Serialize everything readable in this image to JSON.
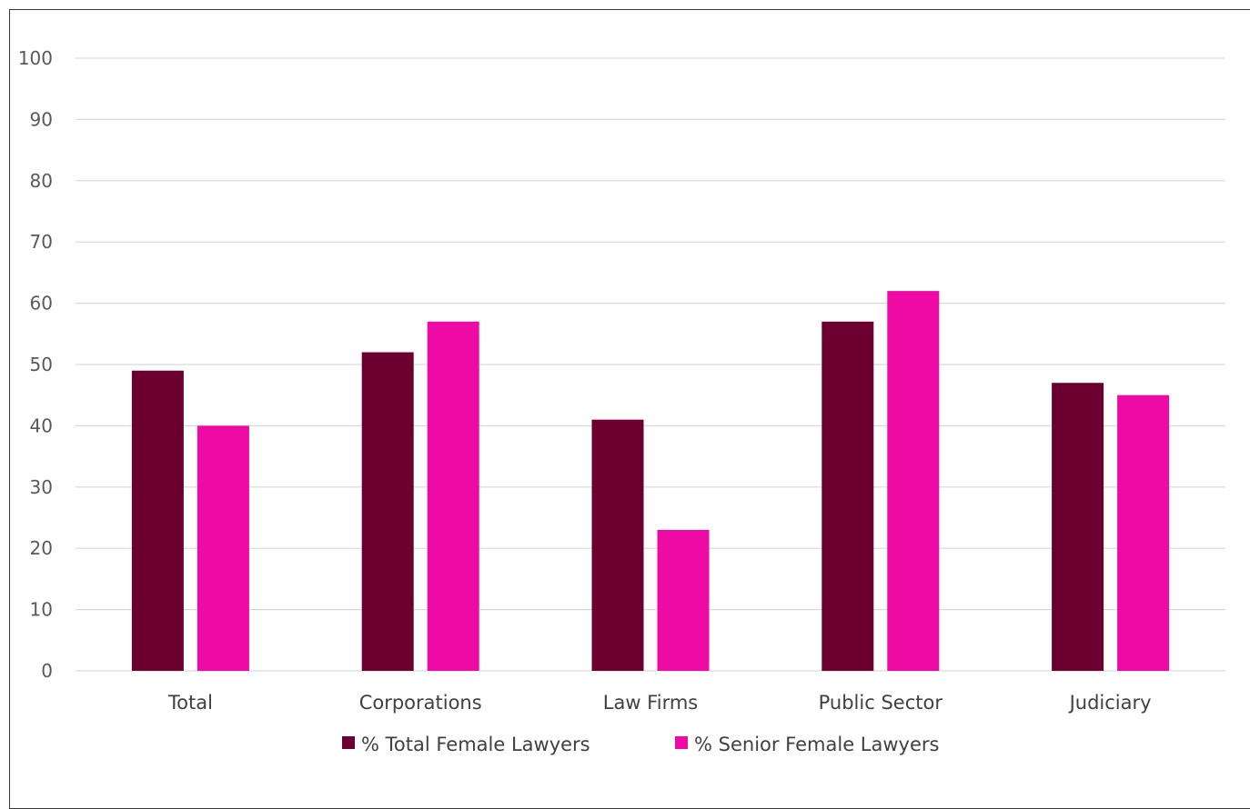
{
  "chart_data": {
    "type": "bar",
    "categories": [
      "Total",
      "Corporations",
      "Law Firms",
      "Public Sector",
      "Judiciary"
    ],
    "series": [
      {
        "name": "% Total Female Lawyers",
        "values": [
          49,
          52,
          41,
          57,
          47
        ],
        "color": "#6b0030"
      },
      {
        "name": "% Senior Female Lawyers",
        "values": [
          40,
          57,
          23,
          62,
          45
        ],
        "color": "#ee0aa4"
      }
    ],
    "ylim": [
      0,
      100
    ],
    "yticks": [
      0,
      10,
      20,
      30,
      40,
      50,
      60,
      70,
      80,
      90,
      100
    ],
    "grid": true,
    "legend_position": "bottom",
    "gridline_color": "#d9d9d9"
  }
}
